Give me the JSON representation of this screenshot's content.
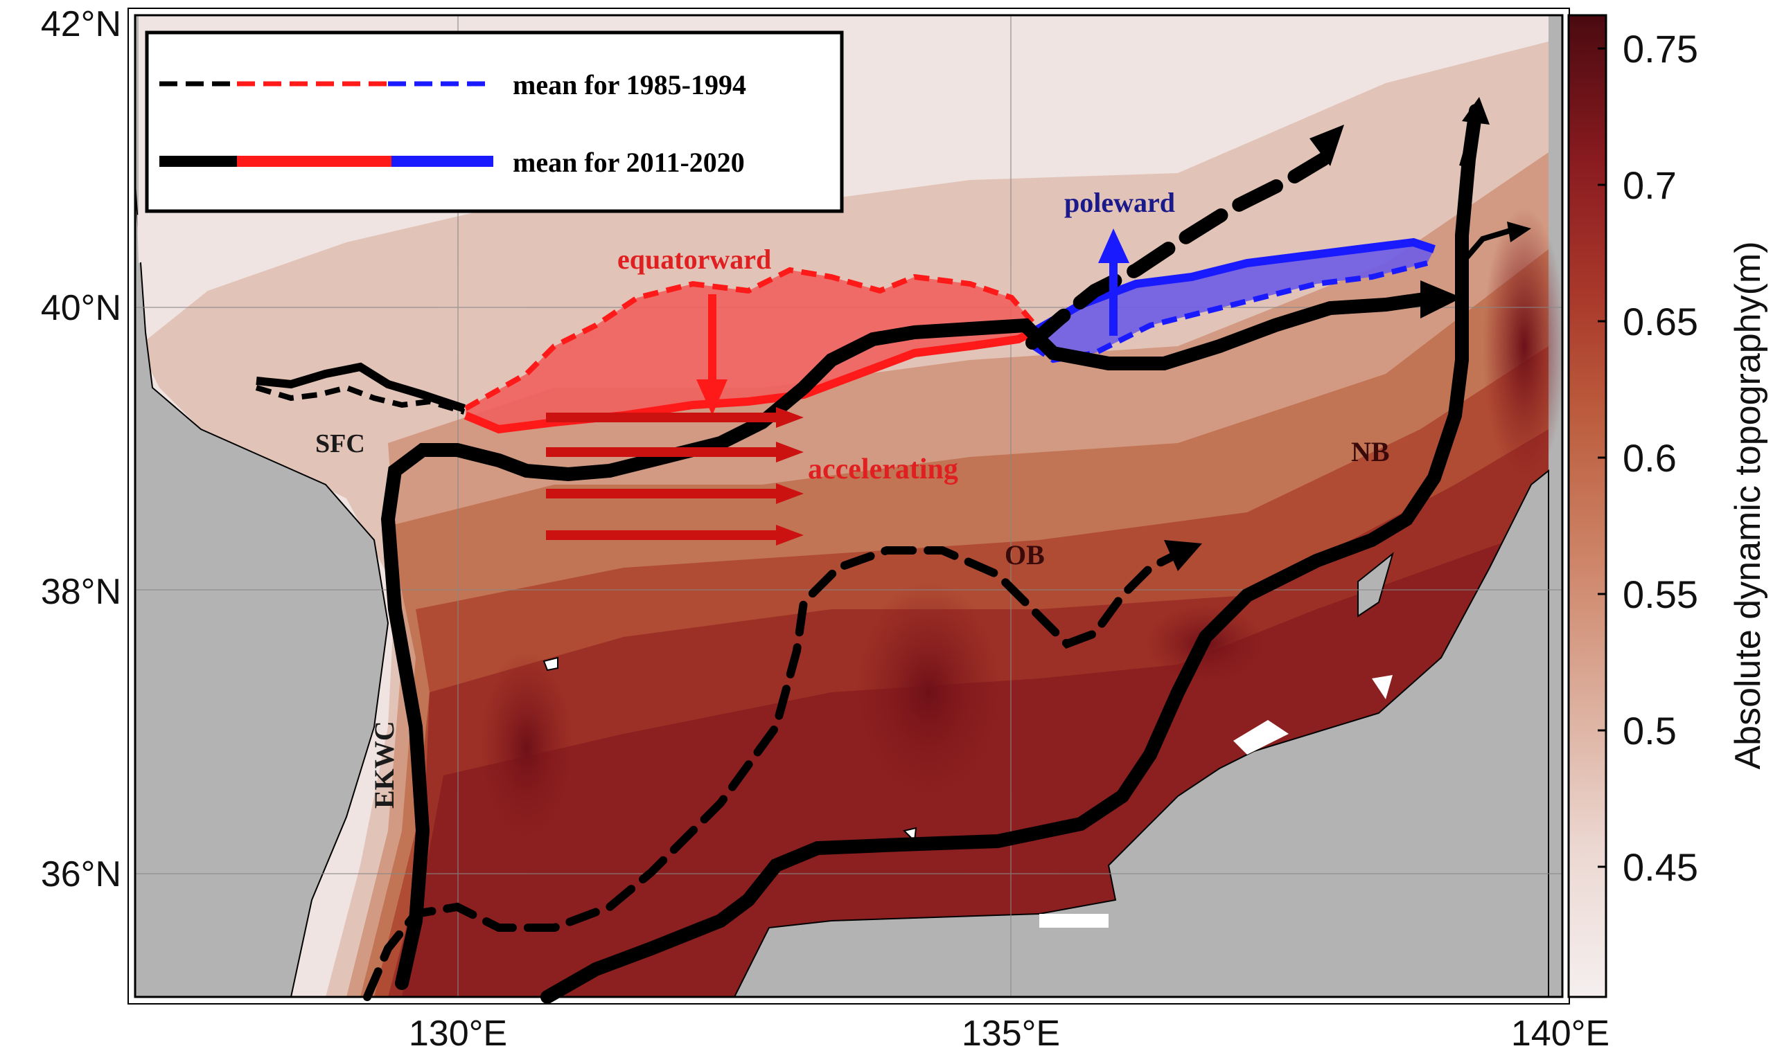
{
  "map": {
    "lat_ticks": [
      "42°N",
      "40°N",
      "38°N",
      "36°N"
    ],
    "lon_ticks": [
      "130°E",
      "135°E",
      "140°E"
    ]
  },
  "legend": {
    "dashed_label": "mean for 1985-1994",
    "solid_label": "mean for 2011-2020"
  },
  "annotations": {
    "equatorward": "equatorward",
    "poleward": "poleward",
    "accelerating": "accelerating",
    "sfc": "SFC",
    "nb": "NB",
    "ob": "OB",
    "ekwc": "EKWC"
  },
  "colorbar": {
    "label": "Absolute dynamic topography(m)",
    "ticks": [
      "0.75",
      "0.7",
      "0.65",
      "0.6",
      "0.55",
      "0.5",
      "0.45"
    ],
    "colors": [
      "#f5efef",
      "#e9cfc8",
      "#d99a85",
      "#c56a4d",
      "#b0402a",
      "#8f1a1c",
      "#4a0a10"
    ]
  },
  "colors": {
    "land": "#b3b3b3",
    "red_front": "#ff1a1a",
    "blue_front": "#1a1aff",
    "current": "#000000",
    "arrow_red": "#cc1111"
  }
}
